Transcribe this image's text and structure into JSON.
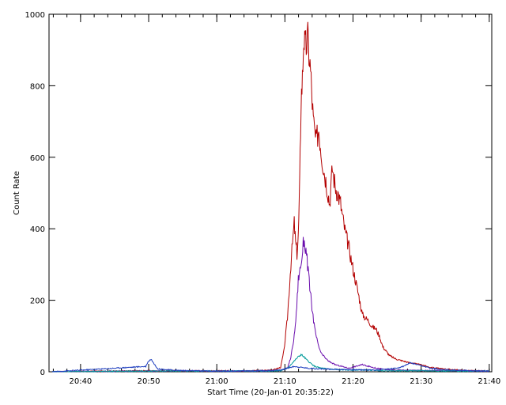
{
  "chart_data": {
    "type": "line",
    "title": "",
    "xlabel": "Start Time (20-Jan-01 20:35:22)",
    "ylabel": "Count Rate",
    "xlim_minutes_from_start": [
      0,
      65
    ],
    "ylim": [
      0,
      1000
    ],
    "x_ticks": [
      {
        "label": "20:40",
        "minutes": 4.63
      },
      {
        "label": "20:50",
        "minutes": 14.63
      },
      {
        "label": "21:00",
        "minutes": 24.63
      },
      {
        "label": "21:10",
        "minutes": 34.63
      },
      {
        "label": "21:20",
        "minutes": 44.63
      },
      {
        "label": "21:30",
        "minutes": 54.63
      },
      {
        "label": "21:40",
        "minutes": 64.63
      }
    ],
    "y_ticks": [
      0,
      200,
      400,
      600,
      800,
      1000
    ],
    "grid": false,
    "series": [
      {
        "color": "#b30000",
        "x": [
          0.5,
          14.6,
          16,
          18,
          20,
          22,
          24,
          26,
          28,
          30,
          32,
          33,
          34,
          34.5,
          35,
          35.5,
          36,
          36.2,
          36.4,
          36.6,
          36.8,
          37,
          37.2,
          37.4,
          37.6,
          38,
          38.4,
          38.8,
          39.2,
          39.6,
          40,
          40.4,
          40.8,
          41.2,
          41.6,
          42,
          42.4,
          42.8,
          43.2,
          43.6,
          44,
          44.5,
          45,
          45.5,
          46,
          46.5,
          47,
          47.5,
          48,
          48.5,
          49,
          50,
          51,
          52,
          53,
          54,
          55,
          56,
          57,
          58,
          60,
          62,
          64.63
        ],
        "values": [
          0,
          3,
          2,
          3,
          2,
          3,
          2,
          3,
          2,
          3,
          4,
          6,
          12,
          60,
          150,
          300,
          415,
          360,
          330,
          380,
          520,
          760,
          820,
          940,
          900,
          930,
          840,
          700,
          640,
          680,
          610,
          560,
          520,
          470,
          570,
          520,
          500,
          470,
          420,
          380,
          350,
          300,
          255,
          210,
          160,
          150,
          140,
          125,
          120,
          100,
          70,
          45,
          35,
          30,
          25,
          22,
          18,
          12,
          10,
          8,
          5,
          3,
          2
        ]
      },
      {
        "color": "#6a0dad",
        "x": [
          0.5,
          14.6,
          16,
          20,
          24,
          28,
          32,
          34,
          35,
          35.5,
          36,
          36.3,
          36.6,
          37,
          37.4,
          37.8,
          38.2,
          38.6,
          39,
          39.5,
          40,
          41,
          42,
          43,
          44,
          45,
          46,
          47,
          48,
          50,
          54,
          58,
          62,
          64.63
        ],
        "values": [
          0,
          2,
          2,
          3,
          2,
          2,
          2,
          4,
          10,
          40,
          100,
          160,
          260,
          300,
          370,
          330,
          250,
          180,
          120,
          75,
          50,
          30,
          20,
          15,
          10,
          15,
          20,
          15,
          10,
          5,
          4,
          3,
          2,
          2
        ]
      },
      {
        "color": "#009999",
        "x": [
          0.5,
          14.6,
          16,
          20,
          24,
          28,
          32,
          34,
          35,
          36,
          36.5,
          37,
          37.5,
          38,
          39,
          40,
          42,
          44,
          46,
          48,
          50,
          54,
          58,
          62,
          64.63
        ],
        "values": [
          0,
          2,
          2,
          2,
          2,
          2,
          2,
          3,
          10,
          30,
          40,
          48,
          40,
          30,
          15,
          10,
          6,
          5,
          5,
          4,
          3,
          3,
          2,
          2,
          2
        ]
      },
      {
        "color": "#1f3fbf",
        "x": [
          0.5,
          14.2,
          14.6,
          15,
          15.5,
          16,
          18,
          20,
          24,
          28,
          32,
          34,
          36,
          38,
          40,
          44,
          48,
          51,
          52,
          53,
          54,
          55,
          56,
          58,
          60,
          62,
          64.63
        ],
        "values": [
          0,
          15,
          30,
          35,
          20,
          8,
          5,
          3,
          2,
          2,
          3,
          5,
          15,
          10,
          8,
          6,
          5,
          10,
          15,
          25,
          20,
          15,
          10,
          6,
          4,
          3,
          2
        ]
      }
    ]
  }
}
